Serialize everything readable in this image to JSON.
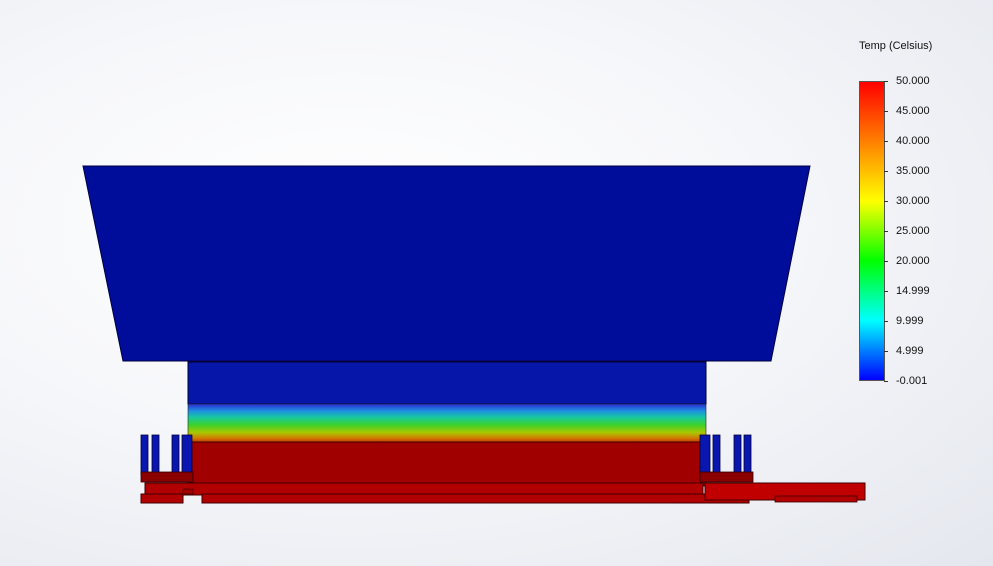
{
  "legend": {
    "title": "Temp (Celsius)",
    "tick_labels": [
      "50.000",
      "45.000",
      "40.000",
      "35.000",
      "30.000",
      "25.000",
      "20.000",
      "14.999",
      "9.999",
      "4.999",
      "-0.001"
    ],
    "max": 50.0,
    "min": -0.001,
    "colors": [
      "#ff0000",
      "#ff8000",
      "#ffff00",
      "#00ff00",
      "#00ffff",
      "#0000ff"
    ]
  },
  "model": {
    "hot_color": "#a00000",
    "cold_color": "#0b14a8",
    "dark_cold_color": "#000c9a"
  }
}
